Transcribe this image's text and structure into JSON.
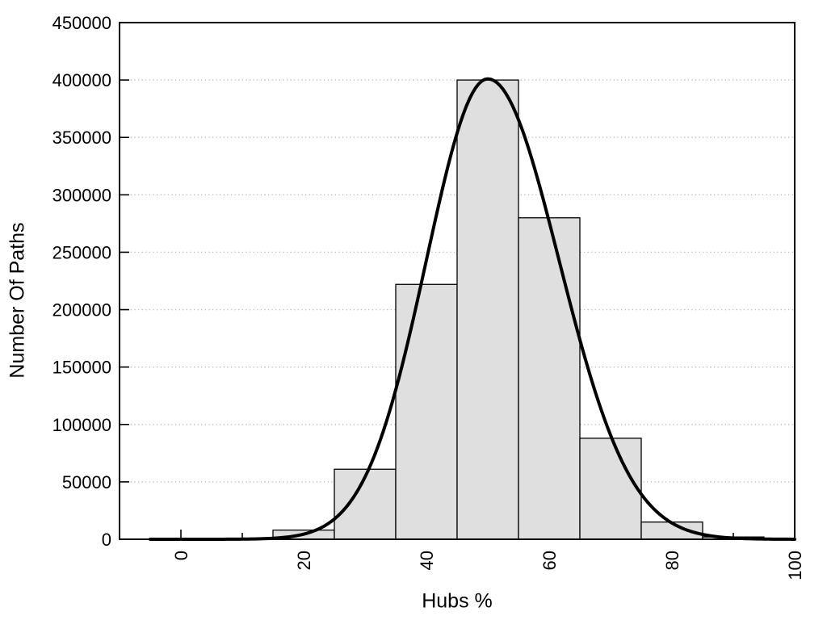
{
  "chart_data": {
    "type": "bar",
    "subtype": "histogram-with-gaussian-fit",
    "title": "",
    "xlabel": "Hubs %",
    "ylabel": "Number Of Paths",
    "xlim": [
      -10,
      100
    ],
    "ylim": [
      0,
      450000
    ],
    "x_major_ticks": [
      0,
      20,
      40,
      60,
      80,
      100
    ],
    "x_minor_ticks": [
      10,
      30,
      50,
      70,
      90
    ],
    "y_ticks": [
      0,
      50000,
      100000,
      150000,
      200000,
      250000,
      300000,
      350000,
      400000,
      450000
    ],
    "grid": {
      "horizontal_dotted": true,
      "vertical": false,
      "legend": "none"
    },
    "bins": [
      {
        "start": 15,
        "end": 25,
        "count": 8000
      },
      {
        "start": 25,
        "end": 35,
        "count": 61000
      },
      {
        "start": 35,
        "end": 45,
        "count": 222000
      },
      {
        "start": 45,
        "end": 55,
        "count": 400000
      },
      {
        "start": 55,
        "end": 65,
        "count": 280000
      },
      {
        "start": 65,
        "end": 75,
        "count": 88000
      },
      {
        "start": 75,
        "end": 85,
        "count": 15000
      },
      {
        "start": 85,
        "end": 95,
        "count": 2000
      }
    ],
    "fit_curve": {
      "shape": "gaussian",
      "peak": 401000,
      "mean": 50,
      "sigma_left": 10.0,
      "sigma_right": 11.6,
      "x_start": -5,
      "x_end": 100
    },
    "colors": {
      "bar_fill": "#dfdfdf",
      "bar_border": "#000000",
      "curve": "#000000",
      "grid_dots": "#b8b8b8",
      "axis": "#000000",
      "text": "#000000",
      "background": "#ffffff"
    }
  }
}
